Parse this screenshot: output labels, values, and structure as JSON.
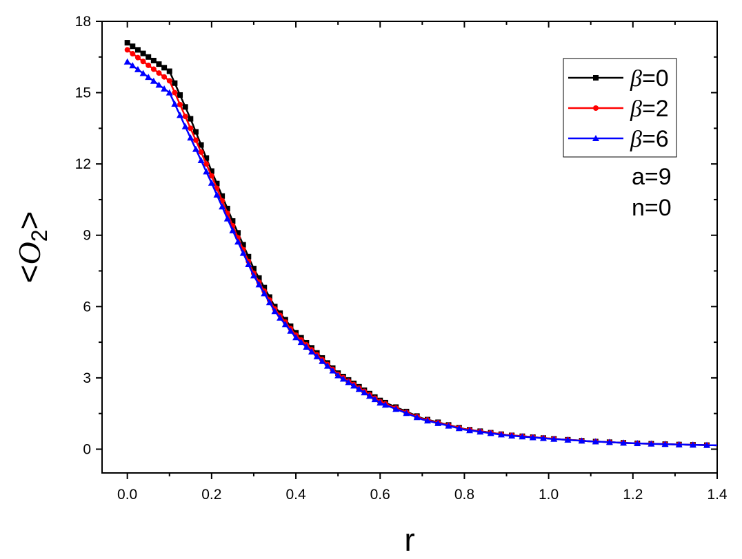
{
  "chart_data": {
    "type": "line",
    "xlabel": "r",
    "ylabel_parts": {
      "open": "<",
      "symbol": "O",
      "subscript": "2",
      "close": ">"
    },
    "xlim": [
      -0.06,
      1.4
    ],
    "ylim": [
      -1.0,
      18
    ],
    "xticks": [
      "0.0",
      "0.2",
      "0.4",
      "0.6",
      "0.8",
      "1.0",
      "1.2",
      "1.4"
    ],
    "xtick_values": [
      0.0,
      0.2,
      0.4,
      0.6,
      0.8,
      1.0,
      1.2,
      1.4
    ],
    "yticks": [
      "0",
      "3",
      "6",
      "9",
      "12",
      "15",
      "18"
    ],
    "ytick_values": [
      0,
      3,
      6,
      9,
      12,
      15,
      18
    ],
    "legend_position": "top-right",
    "series": [
      {
        "name_symbol": "β",
        "name_value": "=0",
        "color": "#000000",
        "marker": "square",
        "x": [
          0.0,
          0.1,
          0.15,
          0.2,
          0.25,
          0.3,
          0.35,
          0.4,
          0.5,
          0.6,
          0.7,
          0.8,
          0.9,
          1.0,
          1.1,
          1.2,
          1.3,
          1.4
        ],
        "y": [
          17.1,
          15.9,
          13.9,
          11.7,
          9.6,
          7.6,
          6.0,
          4.9,
          3.2,
          2.05,
          1.3,
          0.85,
          0.6,
          0.45,
          0.33,
          0.25,
          0.2,
          0.16
        ]
      },
      {
        "name_symbol": "β",
        "name_value": "=2",
        "color": "#ff0000",
        "marker": "circle",
        "x": [
          0.0,
          0.1,
          0.15,
          0.2,
          0.25,
          0.3,
          0.35,
          0.4,
          0.5,
          0.6,
          0.7,
          0.8,
          0.9,
          1.0,
          1.1,
          1.2,
          1.3,
          1.4
        ],
        "y": [
          16.8,
          15.5,
          13.5,
          11.5,
          9.4,
          7.4,
          5.9,
          4.8,
          3.15,
          2.0,
          1.28,
          0.84,
          0.6,
          0.45,
          0.33,
          0.25,
          0.2,
          0.16
        ]
      },
      {
        "name_symbol": "β",
        "name_value": "=6",
        "color": "#0000ff",
        "marker": "triangle",
        "x": [
          0.0,
          0.1,
          0.15,
          0.2,
          0.25,
          0.3,
          0.35,
          0.4,
          0.5,
          0.6,
          0.7,
          0.8,
          0.9,
          1.0,
          1.1,
          1.2,
          1.3,
          1.4
        ],
        "y": [
          16.3,
          15.0,
          13.1,
          11.2,
          9.2,
          7.3,
          5.8,
          4.7,
          3.1,
          1.95,
          1.25,
          0.82,
          0.58,
          0.44,
          0.33,
          0.25,
          0.2,
          0.16
        ]
      }
    ],
    "annotations": [
      "a=9",
      "n=0"
    ]
  }
}
